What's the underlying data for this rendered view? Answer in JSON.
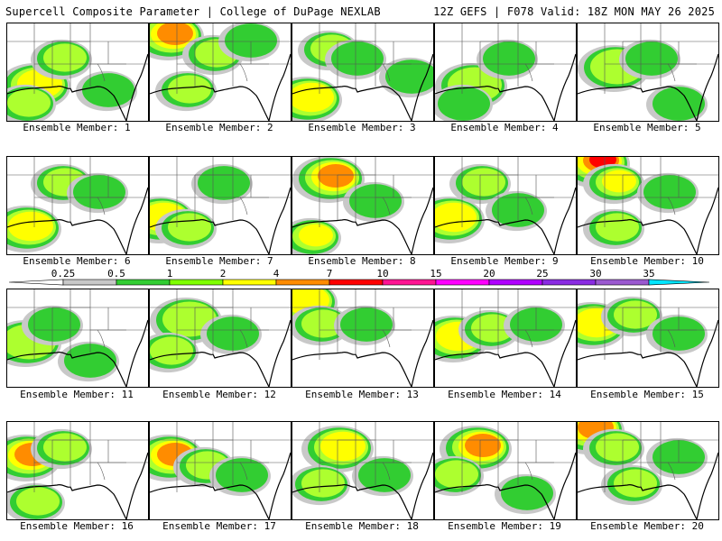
{
  "header": {
    "left": "Supercell Composite Parameter | College of DuPage NEXLAB",
    "right": "12Z GEFS | F078 Valid: 18Z MON MAY 26 2025"
  },
  "members": [
    {
      "label": "Ensemble Member: 1",
      "blobs": [
        [
          30,
          70,
          3
        ],
        [
          60,
          40,
          2
        ],
        [
          20,
          90,
          2
        ],
        [
          110,
          75,
          1
        ]
      ]
    },
    {
      "label": "Ensemble Member: 2",
      "blobs": [
        [
          20,
          15,
          4
        ],
        [
          70,
          35,
          2
        ],
        [
          40,
          75,
          2
        ],
        [
          110,
          20,
          1
        ]
      ]
    },
    {
      "label": "Ensemble Member: 3",
      "blobs": [
        [
          15,
          85,
          3
        ],
        [
          40,
          30,
          2
        ],
        [
          70,
          40,
          1
        ],
        [
          130,
          60,
          1
        ]
      ]
    },
    {
      "label": "Ensemble Member: 4",
      "blobs": [
        [
          40,
          70,
          2
        ],
        [
          80,
          40,
          1
        ],
        [
          30,
          90,
          1
        ]
      ]
    },
    {
      "label": "Ensemble Member: 5",
      "blobs": [
        [
          40,
          50,
          2
        ],
        [
          80,
          40,
          1
        ],
        [
          110,
          90,
          1
        ]
      ]
    },
    {
      "label": "Ensemble Member: 6",
      "blobs": [
        [
          20,
          80,
          3
        ],
        [
          60,
          30,
          2
        ],
        [
          100,
          40,
          1
        ]
      ]
    },
    {
      "label": "Ensemble Member: 7",
      "blobs": [
        [
          10,
          70,
          3
        ],
        [
          40,
          80,
          2
        ],
        [
          80,
          30,
          1
        ]
      ]
    },
    {
      "label": "Ensemble Member: 8",
      "blobs": [
        [
          40,
          25,
          4
        ],
        [
          20,
          90,
          3
        ],
        [
          90,
          50,
          1
        ]
      ]
    },
    {
      "label": "Ensemble Member: 9",
      "blobs": [
        [
          15,
          70,
          3
        ],
        [
          50,
          30,
          2
        ],
        [
          90,
          60,
          1
        ]
      ]
    },
    {
      "label": "Ensemble Member: 10",
      "blobs": [
        [
          18,
          8,
          5
        ],
        [
          40,
          30,
          3
        ],
        [
          40,
          80,
          2
        ],
        [
          100,
          40,
          1
        ]
      ]
    },
    {
      "label": "Ensemble Member: 11",
      "blobs": [
        [
          20,
          60,
          2
        ],
        [
          50,
          40,
          1
        ],
        [
          90,
          80,
          1
        ]
      ]
    },
    {
      "label": "Ensemble Member: 12",
      "blobs": [
        [
          40,
          35,
          2
        ],
        [
          20,
          70,
          2
        ],
        [
          90,
          50,
          1
        ]
      ]
    },
    {
      "label": "Ensemble Member: 13",
      "blobs": [
        [
          10,
          15,
          3
        ],
        [
          30,
          40,
          2
        ],
        [
          80,
          40,
          1
        ]
      ]
    },
    {
      "label": "Ensemble Member: 14",
      "blobs": [
        [
          20,
          55,
          3
        ],
        [
          60,
          45,
          2
        ],
        [
          110,
          40,
          1
        ]
      ]
    },
    {
      "label": "Ensemble Member: 15",
      "blobs": [
        [
          15,
          40,
          3
        ],
        [
          60,
          30,
          2
        ],
        [
          110,
          50,
          1
        ]
      ]
    },
    {
      "label": "Ensemble Member: 16",
      "blobs": [
        [
          20,
          40,
          4
        ],
        [
          60,
          30,
          2
        ],
        [
          30,
          90,
          2
        ]
      ]
    },
    {
      "label": "Ensemble Member: 17",
      "blobs": [
        [
          20,
          40,
          4
        ],
        [
          60,
          50,
          2
        ],
        [
          100,
          60,
          1
        ]
      ]
    },
    {
      "label": "Ensemble Member: 18",
      "blobs": [
        [
          50,
          30,
          3
        ],
        [
          30,
          70,
          2
        ],
        [
          100,
          60,
          1
        ]
      ]
    },
    {
      "label": "Ensemble Member: 19",
      "blobs": [
        [
          45,
          30,
          4
        ],
        [
          20,
          60,
          2
        ],
        [
          100,
          80,
          1
        ]
      ]
    },
    {
      "label": "Ensemble Member: 20",
      "blobs": [
        [
          12,
          10,
          4
        ],
        [
          40,
          30,
          2
        ],
        [
          60,
          70,
          2
        ],
        [
          110,
          40,
          1
        ]
      ]
    }
  ],
  "colorbar": {
    "labels": [
      "0.25",
      "0.5",
      "1",
      "2",
      "4",
      "7",
      "10",
      "15",
      "20",
      "25",
      "30",
      "35"
    ],
    "colors": [
      "#ffffff",
      "#c8c8c8",
      "#32cd32",
      "#7fff00",
      "#ffff00",
      "#ff8c00",
      "#ff0000",
      "#ff1493",
      "#ff00ff",
      "#b000ff",
      "#8a2be2",
      "#9b59d0",
      "#00e5ff"
    ]
  }
}
